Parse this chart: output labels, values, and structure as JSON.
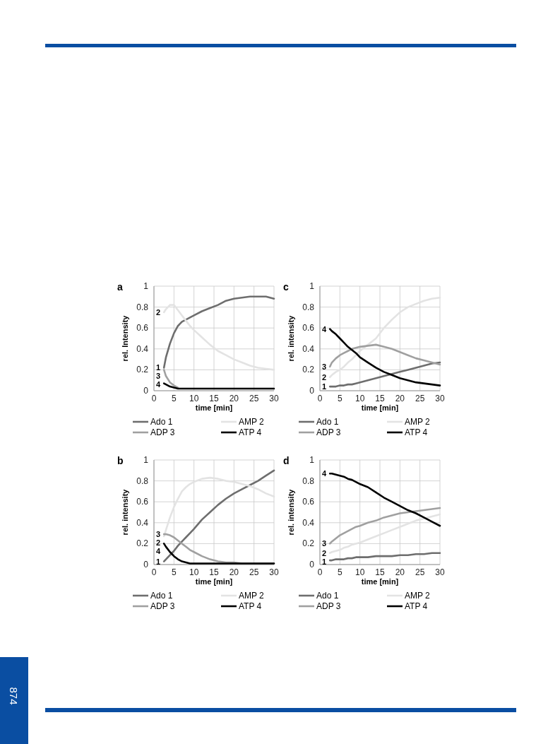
{
  "chart_data": [
    {
      "type": "line",
      "title": "a",
      "xlabel": "time [min]",
      "ylabel": "rel. Intensity",
      "x": [
        2.5,
        3,
        4,
        5,
        6,
        7,
        8,
        9,
        10,
        12,
        14,
        16,
        18,
        20,
        22,
        24,
        26,
        28,
        30
      ],
      "xlim": [
        0,
        30
      ],
      "xticks": [
        0,
        5,
        10,
        15,
        20,
        25,
        30
      ],
      "ylim": [
        0,
        1
      ],
      "yticks": [
        0,
        0.2,
        0.4,
        0.6,
        0.8,
        1
      ],
      "grid": true,
      "legend": "bottom",
      "marker": "none",
      "line_style": "solid",
      "series": [
        {
          "name": "Ado 1",
          "color": "#6e6e6e",
          "values": [
            0.22,
            0.32,
            0.45,
            0.55,
            0.62,
            0.66,
            0.68,
            0.7,
            0.72,
            0.76,
            0.79,
            0.82,
            0.86,
            0.88,
            0.89,
            0.9,
            0.9,
            0.9,
            0.88
          ]
        },
        {
          "name": "AMP 2",
          "color": "#e3e3e3",
          "values": [
            0.75,
            0.78,
            0.82,
            0.82,
            0.77,
            0.72,
            0.67,
            0.62,
            0.58,
            0.51,
            0.44,
            0.38,
            0.34,
            0.3,
            0.27,
            0.24,
            0.22,
            0.21,
            0.2
          ]
        },
        {
          "name": "ADP 3",
          "color": "#a0a0a0",
          "values": [
            0.2,
            0.14,
            0.08,
            0.05,
            0.03,
            null,
            null,
            null,
            null,
            null,
            null,
            null,
            null,
            null,
            null,
            null,
            null,
            null,
            null
          ]
        },
        {
          "name": "ATP 4",
          "color": "#000000",
          "values": [
            0.07,
            0.06,
            0.04,
            0.03,
            0.02,
            0.02,
            0.02,
            0.02,
            0.02,
            0.02,
            0.02,
            0.02,
            0.02,
            0.02,
            0.02,
            0.02,
            0.02,
            0.02,
            0.02
          ]
        }
      ],
      "annotations": [
        "1",
        "2",
        "3",
        "4",
        "874"
      ]
    },
    {
      "type": "line",
      "title": "c",
      "xlabel": "time [min]",
      "ylabel": "rel. intensity",
      "x": [
        2.5,
        3,
        4,
        5,
        6,
        7,
        8,
        9,
        10,
        12,
        14,
        16,
        18,
        20,
        22,
        24,
        26,
        28,
        30
      ],
      "xlim": [
        0,
        30
      ],
      "xticks": [
        0,
        5,
        10,
        15,
        20,
        25,
        30
      ],
      "ylim": [
        0,
        1
      ],
      "yticks": [
        0,
        0.2,
        0.4,
        0.6,
        0.8,
        1
      ],
      "grid": true,
      "legend": "bottom",
      "marker": "none",
      "line_style": "solid",
      "series": [
        {
          "name": "Ado 1",
          "color": "#6e6e6e",
          "values": [
            0.04,
            0.04,
            0.04,
            0.05,
            0.05,
            0.06,
            0.06,
            0.07,
            0.08,
            0.1,
            0.12,
            0.14,
            0.16,
            0.18,
            0.2,
            0.22,
            0.24,
            0.26,
            0.27
          ]
        },
        {
          "name": "AMP 2",
          "color": "#e3e3e3",
          "values": [
            0.13,
            0.15,
            0.18,
            0.2,
            0.23,
            0.27,
            0.3,
            0.34,
            0.38,
            0.44,
            0.5,
            0.6,
            0.68,
            0.75,
            0.8,
            0.83,
            0.86,
            0.88,
            0.89
          ]
        },
        {
          "name": "ADP 3",
          "color": "#a0a0a0",
          "values": [
            0.23,
            0.27,
            0.31,
            0.34,
            0.36,
            0.38,
            0.4,
            0.41,
            0.42,
            0.43,
            0.44,
            0.42,
            0.4,
            0.37,
            0.34,
            0.31,
            0.29,
            0.27,
            0.25
          ]
        },
        {
          "name": "ATP 4",
          "color": "#000000",
          "values": [
            0.59,
            0.57,
            0.54,
            0.5,
            0.46,
            0.42,
            0.39,
            0.36,
            0.32,
            0.27,
            0.22,
            0.18,
            0.15,
            0.12,
            0.1,
            0.08,
            0.07,
            0.06,
            0.05
          ]
        }
      ],
      "annotations": [
        "1",
        "2",
        "3",
        "4"
      ]
    },
    {
      "type": "line",
      "title": "b",
      "xlabel": "time [min]",
      "ylabel": "rel. intensity",
      "x": [
        2.5,
        3,
        4,
        5,
        6,
        7,
        8,
        9,
        10,
        12,
        14,
        16,
        18,
        20,
        22,
        24,
        26,
        28,
        30
      ],
      "xlim": [
        0,
        30
      ],
      "xticks": [
        0,
        5,
        10,
        15,
        20,
        25,
        30
      ],
      "ylim": [
        0,
        1
      ],
      "yticks": [
        0,
        0.2,
        0.4,
        0.6,
        0.8,
        1
      ],
      "grid": true,
      "legend": "bottom",
      "marker": "none",
      "line_style": "solid",
      "series": [
        {
          "name": "Ado 1",
          "color": "#6e6e6e",
          "values": [
            0.03,
            0.05,
            0.09,
            0.13,
            0.18,
            0.22,
            0.26,
            0.3,
            0.34,
            0.43,
            0.5,
            0.57,
            0.63,
            0.68,
            0.72,
            0.76,
            0.8,
            0.85,
            0.9
          ]
        },
        {
          "name": "AMP 2",
          "color": "#e3e3e3",
          "values": [
            0.27,
            0.33,
            0.45,
            0.55,
            0.63,
            0.7,
            0.74,
            0.77,
            0.79,
            0.82,
            0.83,
            0.82,
            0.8,
            0.79,
            0.77,
            0.75,
            0.72,
            0.68,
            0.65
          ]
        },
        {
          "name": "ADP 3",
          "color": "#a0a0a0",
          "values": [
            0.29,
            0.29,
            0.28,
            0.26,
            0.23,
            0.2,
            0.17,
            0.14,
            0.12,
            0.08,
            0.05,
            0.03,
            0.02,
            0.02,
            0.01,
            0.01,
            0.01,
            0.01,
            0.01
          ]
        },
        {
          "name": "ATP 4",
          "color": "#000000",
          "values": [
            0.2,
            0.17,
            0.12,
            0.08,
            0.05,
            0.03,
            0.02,
            0.01,
            0.01,
            0.01,
            0.01,
            0.01,
            0.01,
            0.01,
            0.01,
            0.01,
            0.01,
            0.01,
            0.01
          ]
        }
      ],
      "annotations": [
        "1",
        "2",
        "3",
        "4"
      ]
    },
    {
      "type": "line",
      "title": "d",
      "xlabel": "time [min]",
      "ylabel": "rel. intensity",
      "x": [
        2.5,
        3,
        4,
        5,
        6,
        7,
        8,
        9,
        10,
        12,
        14,
        16,
        18,
        20,
        22,
        24,
        26,
        28,
        30
      ],
      "xlim": [
        0,
        30
      ],
      "xticks": [
        0,
        5,
        10,
        15,
        20,
        25,
        30
      ],
      "ylim": [
        0,
        1
      ],
      "yticks": [
        0,
        0.2,
        0.4,
        0.6,
        0.8,
        1
      ],
      "grid": true,
      "legend": "bottom",
      "marker": "none",
      "line_style": "solid",
      "series": [
        {
          "name": "Ado 1",
          "color": "#6e6e6e",
          "values": [
            0.04,
            0.04,
            0.05,
            0.05,
            0.05,
            0.06,
            0.06,
            0.07,
            0.07,
            0.07,
            0.08,
            0.08,
            0.08,
            0.09,
            0.09,
            0.1,
            0.1,
            0.11,
            0.11
          ]
        },
        {
          "name": "AMP 2",
          "color": "#e3e3e3",
          "values": [
            0.11,
            0.12,
            0.13,
            0.14,
            0.16,
            0.17,
            0.19,
            0.2,
            0.21,
            0.24,
            0.27,
            0.3,
            0.33,
            0.36,
            0.39,
            0.42,
            0.44,
            0.46,
            0.48
          ]
        },
        {
          "name": "ADP 3",
          "color": "#a0a0a0",
          "values": [
            0.2,
            0.22,
            0.25,
            0.28,
            0.3,
            0.32,
            0.34,
            0.36,
            0.37,
            0.4,
            0.42,
            0.45,
            0.47,
            0.49,
            0.5,
            0.51,
            0.52,
            0.53,
            0.54
          ]
        },
        {
          "name": "ATP 4",
          "color": "#000000",
          "values": [
            0.87,
            0.87,
            0.86,
            0.85,
            0.84,
            0.82,
            0.81,
            0.79,
            0.77,
            0.74,
            0.69,
            0.64,
            0.6,
            0.56,
            0.52,
            0.49,
            0.45,
            0.41,
            0.37
          ]
        }
      ],
      "annotations": [
        "1",
        "2",
        "3",
        "4"
      ]
    }
  ]
}
